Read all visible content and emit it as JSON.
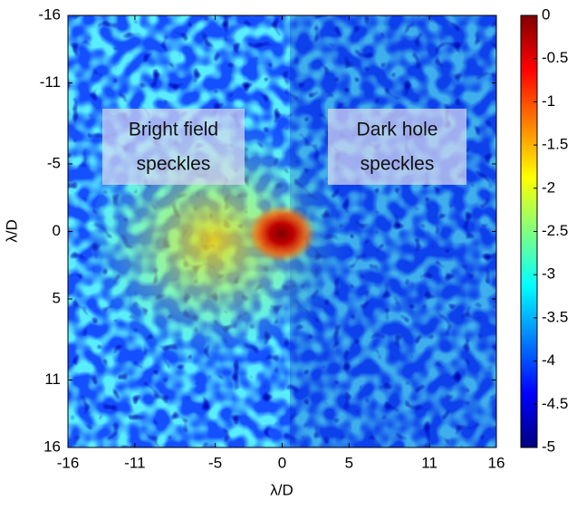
{
  "chart_data": {
    "type": "heatmap",
    "xlabel": "λ/D",
    "ylabel": "λ/D",
    "xlim": [
      -16,
      16
    ],
    "ylim": [
      -16,
      16
    ],
    "y_reversed": true,
    "xticks": [
      -16,
      -11,
      -5,
      0,
      5,
      11,
      16
    ],
    "yticks": [
      -16,
      -11,
      -5,
      0,
      5,
      11,
      16
    ],
    "colorbar": {
      "lim": [
        -5,
        0
      ],
      "ticks": [
        0,
        -0.5,
        -1,
        -1.5,
        -2,
        -2.5,
        -3,
        -3.5,
        -4,
        -4.5,
        -5
      ],
      "colormap": "jet"
    },
    "annotations": [
      {
        "lines": [
          "Bright field",
          "speckles"
        ]
      },
      {
        "lines": [
          "Dark hole",
          "speckles"
        ]
      }
    ]
  }
}
